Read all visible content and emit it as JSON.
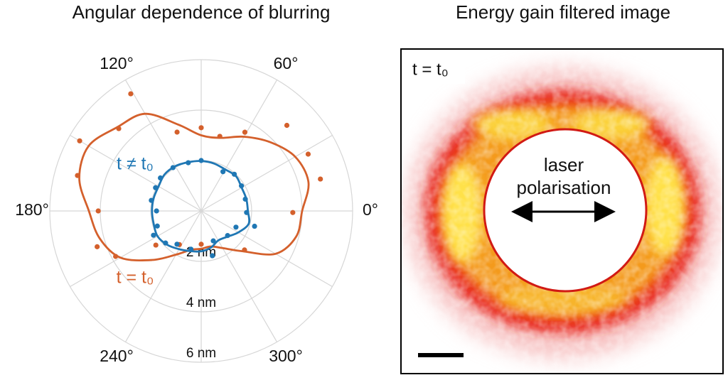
{
  "chart_data": [
    {
      "type": "polar",
      "title": "Angular dependence of blurring",
      "rlim": [
        0,
        6
      ],
      "rticks": [
        {
          "value": 2,
          "label": "2 nm"
        },
        {
          "value": 4,
          "label": "4 nm"
        },
        {
          "value": 6,
          "label": "6 nm"
        }
      ],
      "thetaticks": [
        {
          "value": 0,
          "label": "0°"
        },
        {
          "value": 30,
          "label": null
        },
        {
          "value": 60,
          "label": "60°"
        },
        {
          "value": 90,
          "label": null
        },
        {
          "value": 120,
          "label": "120°"
        },
        {
          "value": 150,
          "label": null
        },
        {
          "value": 180,
          "label": "180°"
        },
        {
          "value": 210,
          "label": null
        },
        {
          "value": 240,
          "label": "240°"
        },
        {
          "value": 270,
          "label": null
        },
        {
          "value": 300,
          "label": "300°"
        },
        {
          "value": 330,
          "label": null
        }
      ],
      "series": [
        {
          "name": "t = t₀",
          "color": "#d4602c",
          "theta": [
            15,
            28,
            45,
            61,
            76,
            90,
            107,
            121,
            135,
            150,
            164,
            180,
            199,
            208,
            217,
            237,
            270,
            318,
            359
          ],
          "values": [
            4.89,
            4.8,
            4.8,
            3.57,
            3.05,
            3.3,
            3.27,
            5.42,
            4.62,
            5.56,
            5.1,
            4.08,
            4.36,
            3.84,
            2.25,
            1.59,
            1.32,
            2.31,
            3.63
          ],
          "fit": {
            "theta": [
              0,
              15,
              30,
              45,
              60,
              75,
              90,
              105,
              120,
              135,
              150,
              165,
              180,
              195,
              210,
              225,
              240,
              255,
              270,
              285,
              300,
              315,
              330,
              345
            ],
            "values": [
              4.0,
              4.4,
              4.3,
              3.86,
              3.4,
              3.0,
              3.0,
              3.55,
              4.45,
              4.7,
              5.15,
              5.0,
              4.45,
              4.17,
              3.7,
              2.75,
              2.0,
              1.6,
              1.5,
              1.46,
              1.7,
              2.25,
              3.4,
              3.9
            ]
          }
        },
        {
          "name": "t ≠ t₀",
          "color": "#1f77b4",
          "theta": [
            15,
            32,
            48,
            61,
            90,
            105,
            123,
            141,
            153,
            168,
            180,
            199,
            207,
            222,
            234,
            255,
            284,
            292,
            317,
            335,
            344,
            358
          ],
          "values": [
            1.81,
            1.88,
            1.96,
            1.78,
            2.0,
            1.98,
            2.05,
            2.08,
            2.03,
            2.02,
            1.77,
            1.84,
            2.12,
            1.9,
            1.63,
            1.57,
            1.83,
            1.28,
            1.43,
            1.52,
            2.2,
            1.8
          ],
          "fit": {
            "theta": [
              0,
              15,
              30,
              45,
              60,
              75,
              90,
              105,
              120,
              135,
              150,
              165,
              180,
              195,
              210,
              225,
              240,
              255,
              270,
              285,
              300,
              315,
              330,
              345
            ],
            "values": [
              1.85,
              1.85,
              1.85,
              1.95,
              1.9,
              1.95,
              1.98,
              2.0,
              2.05,
              2.05,
              1.95,
              1.95,
              1.95,
              1.95,
              2.0,
              1.9,
              1.75,
              1.65,
              1.6,
              1.5,
              1.35,
              1.45,
              1.7,
              1.95
            ]
          }
        }
      ]
    },
    {
      "type": "image",
      "title": "Energy gain filtered image",
      "annotations": [
        "t = t₀",
        "laser",
        "polarisation"
      ]
    }
  ]
}
